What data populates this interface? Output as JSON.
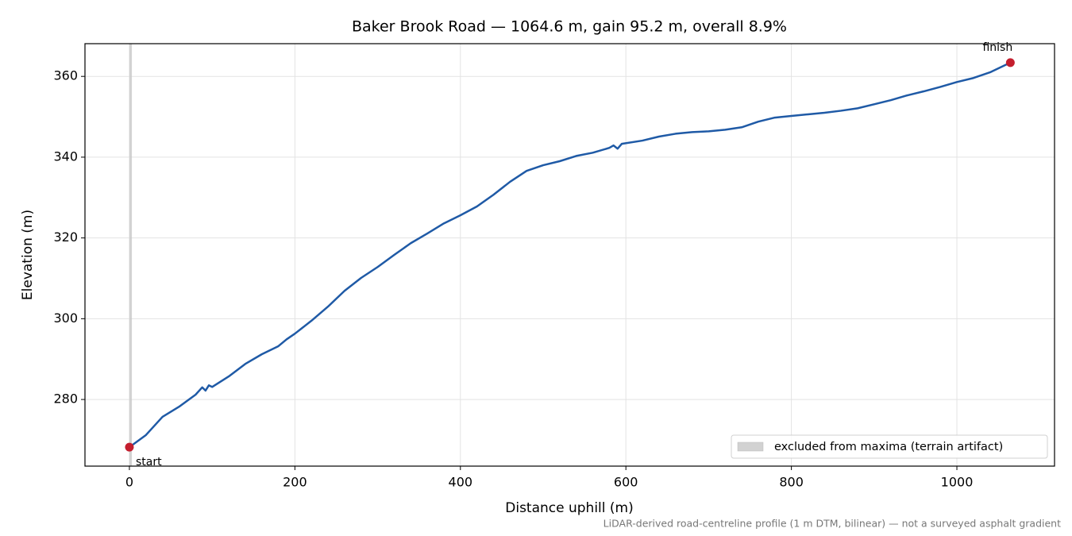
{
  "chart_data": {
    "type": "line",
    "title": "Baker Brook Road — 1064.6 m, gain 95.2 m, overall 8.9%",
    "x_label": "Distance uphill (m)",
    "y_label": "Elevation (m)",
    "footnote": "LiDAR-derived road-centreline profile (1 m DTM, bilinear) — not a surveyed asphalt gradient",
    "x": [
      0,
      20,
      40,
      60,
      80,
      88,
      92,
      96,
      100,
      120,
      140,
      160,
      180,
      190,
      200,
      220,
      240,
      260,
      280,
      300,
      320,
      340,
      360,
      380,
      400,
      420,
      440,
      460,
      480,
      500,
      520,
      540,
      560,
      580,
      585,
      590,
      595,
      620,
      640,
      660,
      680,
      700,
      720,
      740,
      760,
      780,
      800,
      820,
      840,
      860,
      880,
      900,
      920,
      940,
      960,
      980,
      1000,
      1020,
      1040,
      1064.6
    ],
    "series": [
      {
        "color": "#1f5aa6",
        "values": [
          268.2,
          271.2,
          275.7,
          278.2,
          281.2,
          283.0,
          282.2,
          283.5,
          283.1,
          285.7,
          288.8,
          291.2,
          293.2,
          294.9,
          296.3,
          299.5,
          303.0,
          306.9,
          310.1,
          312.8,
          315.8,
          318.7,
          321.1,
          323.6,
          325.6,
          327.8,
          330.7,
          333.9,
          336.6,
          338.0,
          339.0,
          340.3,
          341.1,
          342.3,
          342.9,
          342.1,
          343.3,
          344.1,
          345.1,
          345.8,
          346.2,
          346.4,
          346.8,
          347.4,
          348.8,
          349.8,
          350.2,
          350.6,
          351.0,
          351.5,
          352.1,
          353.1,
          354.1,
          355.3,
          356.3,
          357.4,
          358.6,
          359.6,
          361.0,
          363.4
        ]
      }
    ],
    "annotations": [
      {
        "text": "start",
        "x": 0,
        "y": 268.2
      },
      {
        "text": "finish",
        "x": 1064.6,
        "y": 363.4
      }
    ],
    "annotation_color": "#c41e2e",
    "excluded": {
      "label": "excluded from maxima (terrain artifact)",
      "x": [
        0,
        3
      ],
      "color": "#c8c8c8"
    },
    "legend": "lower right",
    "xlim": [
      -53.7,
      1118
    ],
    "ylim": [
      263.5,
      368.1
    ],
    "xticks": [
      0,
      200,
      400,
      600,
      800,
      1000
    ],
    "yticks": [
      280,
      300,
      320,
      340,
      360
    ],
    "grid": true
  }
}
